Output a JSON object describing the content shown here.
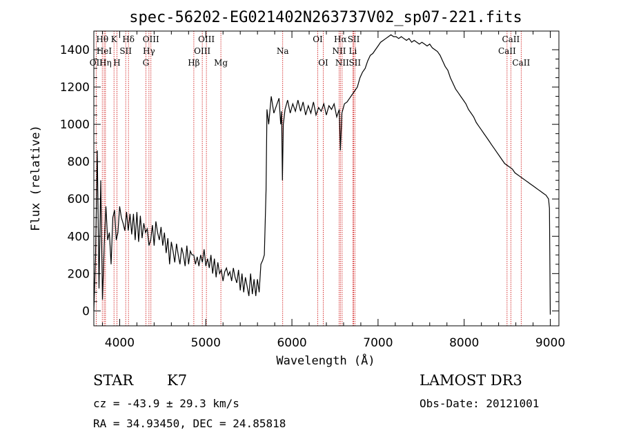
{
  "chart_data": {
    "type": "line",
    "title": "spec-56202-EG021402N263737V02_sp07-221.fits",
    "xlabel": "Wavelength (Å)",
    "ylabel": "Flux (relative)",
    "xlim": [
      3700,
      9100
    ],
    "ylim": [
      -80,
      1500
    ],
    "x_ticks": [
      4000,
      5000,
      6000,
      7000,
      8000,
      9000
    ],
    "y_ticks": [
      0,
      200,
      400,
      600,
      800,
      1000,
      1200,
      1400
    ],
    "grid": false,
    "series": [
      {
        "points": [
          [
            3700,
            0
          ],
          [
            3720,
            300
          ],
          [
            3740,
            860
          ],
          [
            3760,
            120
          ],
          [
            3780,
            700
          ],
          [
            3800,
            60
          ],
          [
            3820,
            350
          ],
          [
            3840,
            560
          ],
          [
            3860,
            380
          ],
          [
            3880,
            420
          ],
          [
            3900,
            250
          ],
          [
            3920,
            500
          ],
          [
            3940,
            540
          ],
          [
            3960,
            380
          ],
          [
            3980,
            420
          ],
          [
            4000,
            560
          ],
          [
            4020,
            500
          ],
          [
            4040,
            470
          ],
          [
            4060,
            430
          ],
          [
            4080,
            530
          ],
          [
            4100,
            430
          ],
          [
            4120,
            520
          ],
          [
            4140,
            410
          ],
          [
            4160,
            520
          ],
          [
            4180,
            380
          ],
          [
            4200,
            530
          ],
          [
            4220,
            370
          ],
          [
            4240,
            510
          ],
          [
            4260,
            390
          ],
          [
            4280,
            470
          ],
          [
            4300,
            420
          ],
          [
            4320,
            440
          ],
          [
            4340,
            350
          ],
          [
            4360,
            380
          ],
          [
            4380,
            460
          ],
          [
            4400,
            350
          ],
          [
            4420,
            480
          ],
          [
            4440,
            420
          ],
          [
            4460,
            380
          ],
          [
            4480,
            450
          ],
          [
            4500,
            350
          ],
          [
            4520,
            420
          ],
          [
            4540,
            310
          ],
          [
            4560,
            390
          ],
          [
            4580,
            250
          ],
          [
            4600,
            370
          ],
          [
            4620,
            320
          ],
          [
            4640,
            260
          ],
          [
            4660,
            360
          ],
          [
            4680,
            300
          ],
          [
            4700,
            250
          ],
          [
            4720,
            340
          ],
          [
            4740,
            300
          ],
          [
            4760,
            240
          ],
          [
            4780,
            350
          ],
          [
            4800,
            250
          ],
          [
            4820,
            320
          ],
          [
            4840,
            300
          ],
          [
            4860,
            300
          ],
          [
            4880,
            250
          ],
          [
            4900,
            290
          ],
          [
            4920,
            240
          ],
          [
            4940,
            300
          ],
          [
            4960,
            260
          ],
          [
            4980,
            330
          ],
          [
            5000,
            240
          ],
          [
            5020,
            280
          ],
          [
            5040,
            230
          ],
          [
            5060,
            300
          ],
          [
            5080,
            200
          ],
          [
            5100,
            280
          ],
          [
            5120,
            180
          ],
          [
            5140,
            260
          ],
          [
            5160,
            200
          ],
          [
            5180,
            220
          ],
          [
            5200,
            160
          ],
          [
            5220,
            210
          ],
          [
            5240,
            230
          ],
          [
            5260,
            190
          ],
          [
            5280,
            210
          ],
          [
            5300,
            160
          ],
          [
            5320,
            230
          ],
          [
            5340,
            180
          ],
          [
            5360,
            150
          ],
          [
            5380,
            220
          ],
          [
            5400,
            110
          ],
          [
            5420,
            200
          ],
          [
            5440,
            100
          ],
          [
            5460,
            180
          ],
          [
            5480,
            130
          ],
          [
            5500,
            80
          ],
          [
            5520,
            200
          ],
          [
            5540,
            90
          ],
          [
            5560,
            170
          ],
          [
            5580,
            80
          ],
          [
            5600,
            170
          ],
          [
            5620,
            100
          ],
          [
            5640,
            250
          ],
          [
            5660,
            270
          ],
          [
            5680,
            300
          ],
          [
            5700,
            650
          ],
          [
            5710,
            1080
          ],
          [
            5730,
            1000
          ],
          [
            5760,
            1150
          ],
          [
            5790,
            1060
          ],
          [
            5820,
            1100
          ],
          [
            5850,
            1140
          ],
          [
            5870,
            1000
          ],
          [
            5880,
            1070
          ],
          [
            5890,
            700
          ],
          [
            5900,
            1000
          ],
          [
            5920,
            1080
          ],
          [
            5950,
            1130
          ],
          [
            5980,
            1060
          ],
          [
            6010,
            1110
          ],
          [
            6040,
            1070
          ],
          [
            6070,
            1130
          ],
          [
            6100,
            1070
          ],
          [
            6130,
            1120
          ],
          [
            6160,
            1050
          ],
          [
            6190,
            1100
          ],
          [
            6220,
            1060
          ],
          [
            6250,
            1120
          ],
          [
            6280,
            1050
          ],
          [
            6310,
            1090
          ],
          [
            6340,
            1070
          ],
          [
            6370,
            1110
          ],
          [
            6400,
            1050
          ],
          [
            6430,
            1100
          ],
          [
            6460,
            1080
          ],
          [
            6490,
            1110
          ],
          [
            6520,
            1040
          ],
          [
            6550,
            1080
          ],
          [
            6563,
            860
          ],
          [
            6580,
            1060
          ],
          [
            6610,
            1110
          ],
          [
            6640,
            1120
          ],
          [
            6670,
            1140
          ],
          [
            6700,
            1160
          ],
          [
            6730,
            1180
          ],
          [
            6760,
            1200
          ],
          [
            6790,
            1250
          ],
          [
            6820,
            1280
          ],
          [
            6850,
            1300
          ],
          [
            6880,
            1340
          ],
          [
            6910,
            1370
          ],
          [
            6940,
            1380
          ],
          [
            6970,
            1400
          ],
          [
            7000,
            1420
          ],
          [
            7030,
            1440
          ],
          [
            7060,
            1450
          ],
          [
            7090,
            1460
          ],
          [
            7120,
            1470
          ],
          [
            7150,
            1480
          ],
          [
            7180,
            1470
          ],
          [
            7210,
            1470
          ],
          [
            7240,
            1460
          ],
          [
            7270,
            1470
          ],
          [
            7300,
            1460
          ],
          [
            7330,
            1450
          ],
          [
            7360,
            1460
          ],
          [
            7390,
            1440
          ],
          [
            7420,
            1450
          ],
          [
            7450,
            1440
          ],
          [
            7480,
            1430
          ],
          [
            7510,
            1440
          ],
          [
            7540,
            1430
          ],
          [
            7570,
            1420
          ],
          [
            7600,
            1430
          ],
          [
            7630,
            1410
          ],
          [
            7660,
            1400
          ],
          [
            7690,
            1390
          ],
          [
            7720,
            1370
          ],
          [
            7750,
            1340
          ],
          [
            7780,
            1310
          ],
          [
            7810,
            1290
          ],
          [
            7840,
            1250
          ],
          [
            7870,
            1220
          ],
          [
            7900,
            1190
          ],
          [
            7930,
            1170
          ],
          [
            7960,
            1150
          ],
          [
            7990,
            1130
          ],
          [
            8020,
            1110
          ],
          [
            8050,
            1080
          ],
          [
            8080,
            1060
          ],
          [
            8110,
            1040
          ],
          [
            8140,
            1010
          ],
          [
            8170,
            990
          ],
          [
            8200,
            970
          ],
          [
            8230,
            950
          ],
          [
            8260,
            930
          ],
          [
            8290,
            910
          ],
          [
            8320,
            890
          ],
          [
            8350,
            870
          ],
          [
            8380,
            850
          ],
          [
            8410,
            830
          ],
          [
            8440,
            810
          ],
          [
            8470,
            790
          ],
          [
            8500,
            780
          ],
          [
            8530,
            770
          ],
          [
            8560,
            760
          ],
          [
            8590,
            740
          ],
          [
            8620,
            730
          ],
          [
            8650,
            720
          ],
          [
            8680,
            710
          ],
          [
            8710,
            700
          ],
          [
            8740,
            690
          ],
          [
            8770,
            680
          ],
          [
            8800,
            670
          ],
          [
            8830,
            660
          ],
          [
            8860,
            650
          ],
          [
            8890,
            640
          ],
          [
            8920,
            630
          ],
          [
            8950,
            620
          ],
          [
            8980,
            600
          ],
          [
            8990,
            550
          ],
          [
            9000,
            -20
          ]
        ]
      }
    ],
    "lines": [
      {
        "label": "Hθ",
        "x": 3798,
        "row": 1
      },
      {
        "label": "OII",
        "x": 3727,
        "row": 3
      },
      {
        "label": "HeI",
        "x": 3820,
        "row": 2
      },
      {
        "label": "Hη",
        "x": 3835,
        "row": 3
      },
      {
        "label": "K",
        "x": 3934,
        "row": 1
      },
      {
        "label": "H",
        "x": 3968,
        "row": 3
      },
      {
        "label": "SII",
        "x": 4070,
        "row": 2
      },
      {
        "label": "Hδ",
        "x": 4102,
        "row": 1
      },
      {
        "label": "OIII",
        "x": 4363,
        "row": 1
      },
      {
        "label": "Hγ",
        "x": 4340,
        "row": 2
      },
      {
        "label": "G",
        "x": 4304,
        "row": 3
      },
      {
        "label": "Hβ",
        "x": 4861,
        "row": 3
      },
      {
        "label": "OIII",
        "x": 4959,
        "row": 2
      },
      {
        "label": "OIII",
        "x": 5007,
        "row": 1
      },
      {
        "label": "Mg",
        "x": 5175,
        "row": 3
      },
      {
        "label": "Na",
        "x": 5893,
        "row": 2
      },
      {
        "label": "OI",
        "x": 6300,
        "row": 1
      },
      {
        "label": "OI",
        "x": 6364,
        "row": 3
      },
      {
        "label": "NII",
        "x": 6548,
        "row": 2
      },
      {
        "label": "Hα",
        "x": 6563,
        "row": 1
      },
      {
        "label": "NII",
        "x": 6583,
        "row": 3
      },
      {
        "label": "Li",
        "x": 6708,
        "row": 2
      },
      {
        "label": "SII",
        "x": 6717,
        "row": 1
      },
      {
        "label": "SII",
        "x": 6731,
        "row": 3
      },
      {
        "label": "CaII",
        "x": 8498,
        "row": 2
      },
      {
        "label": "CaII",
        "x": 8542,
        "row": 1
      },
      {
        "label": "CaII",
        "x": 8662,
        "row": 3
      }
    ]
  },
  "info": {
    "object_class": "STAR",
    "subclass": "K7",
    "survey": "LAMOST DR3",
    "cz": "cz = -43.9 ± 29.3 km/s",
    "obs_date": "Obs-Date: 20121001",
    "coords": "RA =  34.93450, DEC =  24.85818"
  },
  "colors": {
    "line_marker": "#cc0000",
    "spectrum": "#000000"
  }
}
